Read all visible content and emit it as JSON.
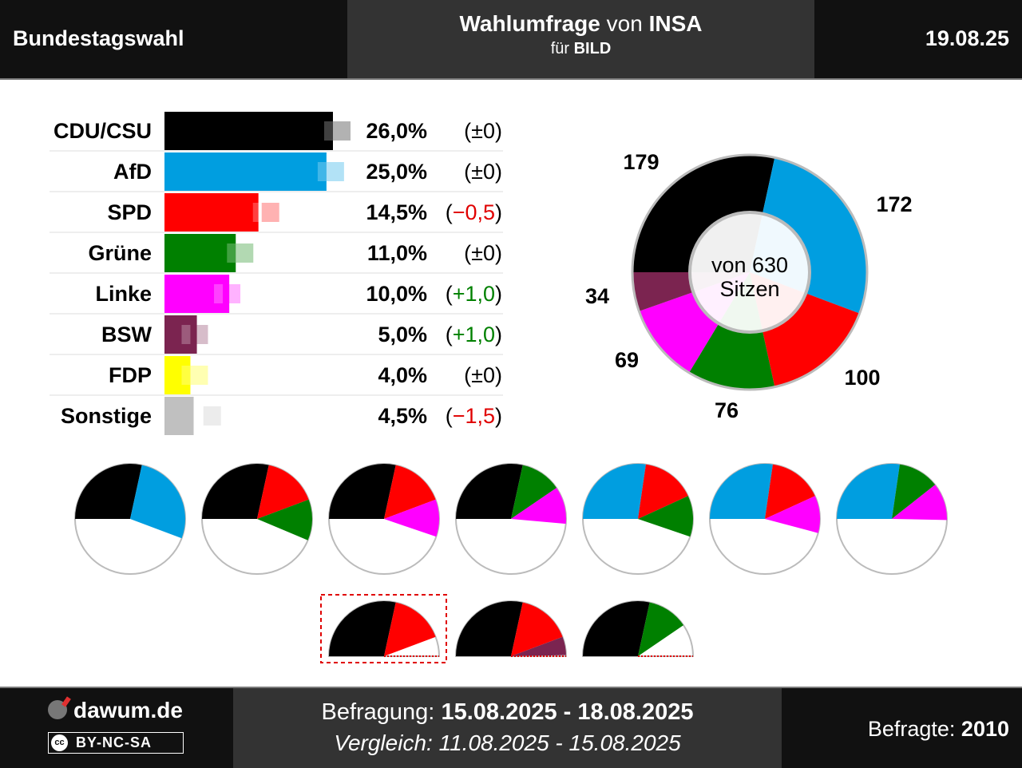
{
  "header": {
    "election": "Bundestagswahl",
    "title_word": "Wahlumfrage",
    "title_von": "von",
    "institute": "INSA",
    "client_prefix": "für",
    "client": "BILD",
    "date": "19.08.25"
  },
  "chart_data": [
    {
      "type": "bar",
      "categories": [
        "CDU/CSU",
        "AfD",
        "SPD",
        "Grüne",
        "Linke",
        "BSW",
        "FDP",
        "Sonstige"
      ],
      "series": [
        {
          "values": [
            26.0,
            25.0,
            14.5,
            11.0,
            10.0,
            5.0,
            4.0,
            4.5
          ]
        },
        {
          "values": [
            26.0,
            25.0,
            15.0,
            11.0,
            9.0,
            4.0,
            4.0,
            6.0
          ]
        }
      ],
      "value_labels": [
        "26,0%",
        "25,0%",
        "14,5%",
        "11,0%",
        "10,0%",
        "5,0%",
        "4,0%",
        "4,5%"
      ],
      "change_labels": [
        "(±0)",
        "(±0)",
        "(−0,5)",
        "(±0)",
        "(+1,0)",
        "(+1,0)",
        "(±0)",
        "(−1,5)"
      ],
      "change_signs": [
        "zero",
        "zero",
        "neg",
        "zero",
        "pos",
        "pos",
        "zero",
        "neg"
      ],
      "colors": [
        "#000000",
        "#009ee0",
        "#ff0000",
        "#008000",
        "#ff00ff",
        "#7b2450",
        "#ffff00",
        "#c0c0c0"
      ],
      "ylim": [
        0,
        40
      ]
    },
    {
      "type": "pie",
      "categories": [
        "CDU/CSU",
        "AfD",
        "SPD",
        "Grüne",
        "Linke",
        "BSW"
      ],
      "values": [
        179,
        172,
        100,
        76,
        69,
        34
      ],
      "labels": [
        "179",
        "172",
        "100",
        "76",
        "69",
        "34"
      ],
      "colors": [
        "#000000",
        "#009ee0",
        "#ff0000",
        "#008000",
        "#ff00ff",
        "#7b2450"
      ],
      "center_line1": "von 630",
      "center_line2": "Sitzen"
    },
    {
      "type": "pie",
      "description": "coalition seat gauges (semicircle = majority)",
      "total": 630,
      "coalitions": [
        {
          "parties": [
            "CDU/CSU",
            "AfD"
          ],
          "values": [
            179,
            172
          ]
        },
        {
          "parties": [
            "CDU/CSU",
            "SPD",
            "Grüne"
          ],
          "values": [
            179,
            100,
            76
          ]
        },
        {
          "parties": [
            "CDU/CSU",
            "SPD",
            "Linke"
          ],
          "values": [
            179,
            100,
            69
          ]
        },
        {
          "parties": [
            "CDU/CSU",
            "Grüne",
            "Linke"
          ],
          "values": [
            179,
            76,
            69
          ]
        },
        {
          "parties": [
            "AfD",
            "SPD",
            "Grüne"
          ],
          "values": [
            172,
            100,
            76
          ]
        },
        {
          "parties": [
            "AfD",
            "SPD",
            "Linke"
          ],
          "values": [
            172,
            100,
            69
          ]
        },
        {
          "parties": [
            "AfD",
            "Grüne",
            "Linke"
          ],
          "values": [
            172,
            76,
            69
          ]
        },
        {
          "parties": [
            "CDU/CSU",
            "SPD"
          ],
          "values": [
            179,
            100
          ],
          "highlighted": true
        },
        {
          "parties": [
            "CDU/CSU",
            "SPD",
            "BSW"
          ],
          "values": [
            179,
            100,
            34
          ]
        },
        {
          "parties": [
            "CDU/CSU",
            "Grüne"
          ],
          "values": [
            179,
            76
          ]
        }
      ]
    }
  ],
  "footer": {
    "brand": "dawum.de",
    "license": "BY-NC-SA",
    "cc_icon": "cc",
    "survey_label": "Befragung:",
    "survey_period": "15.08.2025 - 18.08.2025",
    "compare_label": "Vergleich:",
    "compare_period": "11.08.2025 - 15.08.2025",
    "respondents_label": "Befragte:",
    "respondents": "2010"
  },
  "colors": {
    "header_bg": "#111111",
    "panel_bg": "#333333",
    "negative": "#e00000",
    "positive": "#008000"
  }
}
